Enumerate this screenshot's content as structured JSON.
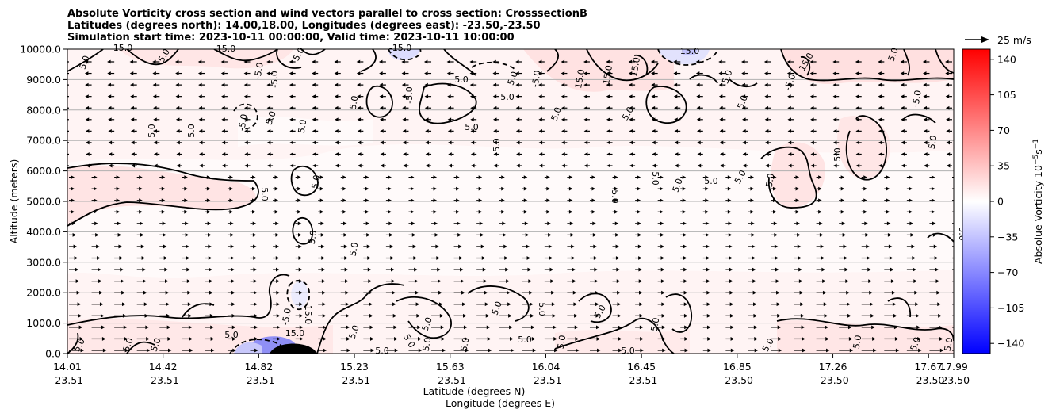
{
  "chart_data": {
    "type": "heatmap",
    "title_lines": [
      "Absolute Vorticity cross section and wind vectors parallel to cross section: CrosssectionB",
      "Latitudes (degrees north): 14.00,18.00, Longitudes (degrees east): -23.50,-23.50",
      "Simulation start time: 2023-10-11 00:00:00, Valid time: 2023-10-11 10:00:00"
    ],
    "ylabel": "Altitude (meters)",
    "xlabel_lat": "Latitude (degrees N)",
    "xlabel_lon": "Longitude (degrees E)",
    "ylim": [
      0,
      10000
    ],
    "y_ticks": [
      "0.0",
      "1000.0",
      "2000.0",
      "3000.0",
      "4000.0",
      "5000.0",
      "6000.0",
      "7000.0",
      "8000.0",
      "9000.0",
      "10000.0"
    ],
    "x_ticks": [
      {
        "lat": "14.01",
        "lon": "-23.51"
      },
      {
        "lat": "14.42",
        "lon": "-23.51"
      },
      {
        "lat": "14.82",
        "lon": "-23.51"
      },
      {
        "lat": "15.23",
        "lon": "-23.51"
      },
      {
        "lat": "15.63",
        "lon": "-23.51"
      },
      {
        "lat": "16.04",
        "lon": "-23.51"
      },
      {
        "lat": "16.45",
        "lon": "-23.51"
      },
      {
        "lat": "16.85",
        "lon": "-23.50"
      },
      {
        "lat": "17.26",
        "lon": "-23.50"
      },
      {
        "lat": "17.67",
        "lon": "-23.50"
      },
      {
        "lat": "17.99",
        "lon": "-23.50"
      }
    ],
    "colorbar": {
      "label": "Absolue Vorticity 10",
      "label_exp": "−5",
      "label_unit": "s",
      "label_unit_exp": "−1",
      "ticks": [
        "140",
        "105",
        "70",
        "35",
        "0",
        "−35",
        "−70",
        "−105",
        "−140"
      ],
      "range": [
        -150,
        150
      ],
      "colors": {
        "low": "#0000ff",
        "mid": "#ffffff",
        "high": "#ff0000"
      }
    },
    "quiver_key": "25 m/s",
    "contour_levels_labeled": [
      "5.0",
      "15.0",
      "-5.0",
      "-15.0"
    ],
    "grid": "horizontal"
  }
}
